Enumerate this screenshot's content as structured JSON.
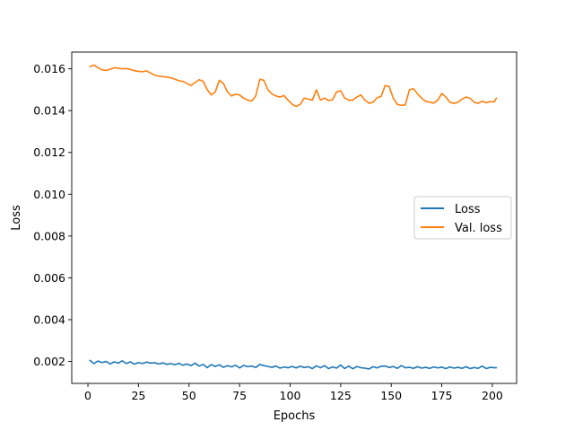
{
  "chart_data": {
    "type": "line",
    "title": "",
    "xlabel": "Epochs",
    "ylabel": "Loss",
    "xlim": [
      -8,
      212
    ],
    "ylim": [
      0.00095,
      0.0168
    ],
    "xticks": [
      0,
      25,
      50,
      75,
      100,
      125,
      150,
      175,
      200
    ],
    "xtick_labels": [
      "0",
      "25",
      "50",
      "75",
      "100",
      "125",
      "150",
      "175",
      "200"
    ],
    "yticks": [
      0.002,
      0.004,
      0.006,
      0.008,
      0.01,
      0.012,
      0.014,
      0.016
    ],
    "ytick_labels": [
      "0.002",
      "0.004",
      "0.006",
      "0.008",
      "0.010",
      "0.012",
      "0.014",
      "0.016"
    ],
    "grid": false,
    "legend_position": "center-right",
    "series": [
      {
        "name": "Loss",
        "color": "#1f77b4",
        "x": [
          1,
          3,
          5,
          7,
          9,
          11,
          13,
          15,
          17,
          19,
          21,
          23,
          25,
          27,
          29,
          31,
          33,
          35,
          37,
          39,
          41,
          43,
          45,
          47,
          49,
          51,
          53,
          55,
          57,
          59,
          61,
          63,
          65,
          67,
          69,
          71,
          73,
          75,
          77,
          79,
          81,
          83,
          85,
          87,
          89,
          91,
          93,
          95,
          97,
          99,
          101,
          103,
          105,
          107,
          109,
          111,
          113,
          115,
          117,
          119,
          121,
          123,
          125,
          127,
          129,
          131,
          133,
          135,
          137,
          139,
          141,
          143,
          145,
          147,
          149,
          151,
          153,
          155,
          157,
          159,
          161,
          163,
          165,
          167,
          169,
          171,
          173,
          175,
          177,
          179,
          181,
          183,
          185,
          187,
          189,
          191,
          193,
          195,
          197,
          199,
          201,
          202
        ],
        "y": [
          0.00205,
          0.0019,
          0.00202,
          0.00195,
          0.002,
          0.00188,
          0.00198,
          0.00192,
          0.00203,
          0.0019,
          0.00198,
          0.00187,
          0.00195,
          0.0019,
          0.00197,
          0.00192,
          0.00194,
          0.00188,
          0.00193,
          0.00186,
          0.0019,
          0.00184,
          0.00191,
          0.00182,
          0.00188,
          0.0018,
          0.00192,
          0.00178,
          0.00186,
          0.0017,
          0.00185,
          0.00176,
          0.00184,
          0.00172,
          0.0018,
          0.00174,
          0.00182,
          0.00169,
          0.00181,
          0.00175,
          0.00178,
          0.00171,
          0.00186,
          0.0018,
          0.00176,
          0.00172,
          0.00178,
          0.00168,
          0.00174,
          0.0017,
          0.00176,
          0.00169,
          0.00177,
          0.00171,
          0.00175,
          0.00166,
          0.00179,
          0.0017,
          0.0018,
          0.00166,
          0.00174,
          0.00168,
          0.00183,
          0.00166,
          0.00178,
          0.00165,
          0.00176,
          0.0017,
          0.00168,
          0.00164,
          0.00175,
          0.00169,
          0.00177,
          0.00178,
          0.00171,
          0.00176,
          0.00167,
          0.0018,
          0.0017,
          0.00172,
          0.00167,
          0.00175,
          0.00168,
          0.00172,
          0.00167,
          0.00174,
          0.00169,
          0.00173,
          0.00166,
          0.00174,
          0.00168,
          0.00172,
          0.00167,
          0.00175,
          0.00166,
          0.00171,
          0.00167,
          0.00178,
          0.00166,
          0.00172,
          0.0017,
          0.0017
        ]
      },
      {
        "name": "Val. loss",
        "color": "#ff7f0e",
        "x": [
          1,
          3,
          5,
          7,
          9,
          11,
          13,
          15,
          17,
          19,
          21,
          23,
          25,
          27,
          29,
          31,
          33,
          35,
          37,
          39,
          41,
          43,
          45,
          47,
          49,
          51,
          53,
          55,
          57,
          59,
          61,
          63,
          65,
          67,
          69,
          71,
          73,
          75,
          77,
          79,
          81,
          83,
          85,
          87,
          89,
          91,
          93,
          95,
          97,
          99,
          101,
          103,
          105,
          107,
          109,
          111,
          113,
          115,
          117,
          119,
          121,
          123,
          125,
          127,
          129,
          131,
          133,
          135,
          137,
          139,
          141,
          143,
          145,
          147,
          149,
          151,
          153,
          155,
          157,
          159,
          161,
          163,
          165,
          167,
          169,
          171,
          173,
          175,
          177,
          179,
          181,
          183,
          185,
          187,
          189,
          191,
          193,
          195,
          197,
          199,
          201,
          202
        ],
        "y": [
          0.0161,
          0.01618,
          0.01605,
          0.01595,
          0.01592,
          0.01598,
          0.01605,
          0.01603,
          0.016,
          0.01601,
          0.01597,
          0.01591,
          0.01588,
          0.01586,
          0.0159,
          0.0158,
          0.0157,
          0.01565,
          0.01563,
          0.0156,
          0.01557,
          0.0155,
          0.01543,
          0.0154,
          0.0153,
          0.0152,
          0.01535,
          0.01548,
          0.0154,
          0.015,
          0.01475,
          0.0149,
          0.01545,
          0.0153,
          0.0149,
          0.0147,
          0.01478,
          0.01475,
          0.0146,
          0.0145,
          0.01446,
          0.0147,
          0.0155,
          0.01545,
          0.015,
          0.0148,
          0.0147,
          0.01465,
          0.01472,
          0.0145,
          0.0143,
          0.0142,
          0.0143,
          0.0146,
          0.01455,
          0.0145,
          0.015,
          0.0145,
          0.0146,
          0.01448,
          0.01452,
          0.0149,
          0.01495,
          0.0146,
          0.0145,
          0.0145,
          0.01465,
          0.01475,
          0.0145,
          0.01435,
          0.0144,
          0.01462,
          0.01468,
          0.0152,
          0.01515,
          0.0146,
          0.0143,
          0.01425,
          0.01428,
          0.015,
          0.01505,
          0.0148,
          0.0146,
          0.01445,
          0.0144,
          0.01436,
          0.0145,
          0.01482,
          0.01465,
          0.0144,
          0.01435,
          0.0144,
          0.01455,
          0.01465,
          0.01458,
          0.0144,
          0.01435,
          0.01445,
          0.01438,
          0.01443,
          0.01442,
          0.0146
        ]
      }
    ]
  }
}
